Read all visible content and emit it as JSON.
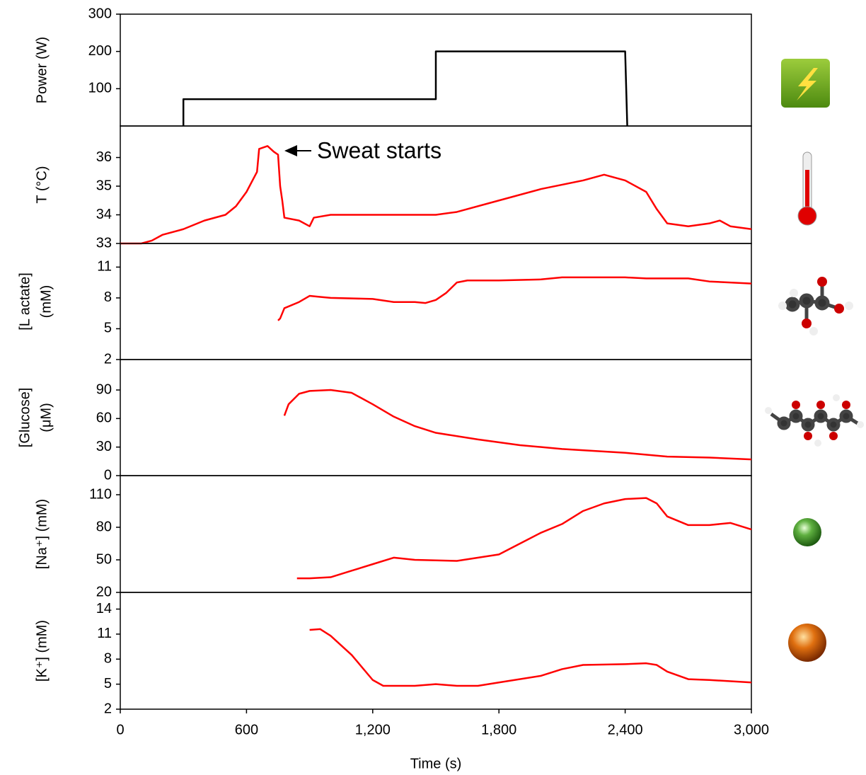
{
  "chart_data": [
    {
      "type": "line",
      "ylabel": [
        "Power (W)"
      ],
      "xlim": [
        0,
        3000
      ],
      "ylim": [
        0,
        300
      ],
      "yticks": [
        100,
        200,
        300
      ],
      "series": [
        {
          "color": "#000000",
          "x": [
            300,
            300,
            1500,
            1500,
            2400,
            2410
          ],
          "values": [
            0,
            72,
            72,
            200,
            200,
            0
          ]
        }
      ]
    },
    {
      "type": "line",
      "ylabel": [
        "T (°C)"
      ],
      "annotation": "Sweat starts",
      "xlim": [
        0,
        3000
      ],
      "ylim": [
        33,
        37.1
      ],
      "yticks": [
        33,
        34,
        35,
        36
      ],
      "series": [
        {
          "color": "#ff0000",
          "x": [
            0,
            100,
            150,
            200,
            300,
            400,
            500,
            550,
            600,
            650,
            660,
            700,
            730,
            750,
            760,
            770,
            780,
            850,
            900,
            920,
            1000,
            1100,
            1500,
            1600,
            1800,
            2000,
            2200,
            2300,
            2400,
            2500,
            2550,
            2600,
            2700,
            2800,
            2850,
            2900,
            3000
          ],
          "values": [
            33,
            33,
            33.1,
            33.3,
            33.5,
            33.8,
            34,
            34.3,
            34.8,
            35.5,
            36.3,
            36.4,
            36.2,
            36.1,
            35.0,
            34.5,
            33.9,
            33.8,
            33.6,
            33.9,
            34.0,
            34,
            34,
            34.1,
            34.5,
            34.9,
            35.2,
            35.4,
            35.2,
            34.8,
            34.2,
            33.7,
            33.6,
            33.7,
            33.8,
            33.6,
            33.5
          ]
        }
      ]
    },
    {
      "type": "line",
      "ylabel": [
        "[L actate]",
        "(mM)"
      ],
      "xlim": [
        0,
        3000
      ],
      "ylim": [
        2,
        13.3
      ],
      "yticks": [
        2,
        5,
        8,
        11
      ],
      "series": [
        {
          "color": "#ff0000",
          "x": [
            750,
            760,
            780,
            850,
            900,
            950,
            1000,
            1200,
            1300,
            1400,
            1450,
            1500,
            1550,
            1600,
            1650,
            1800,
            2000,
            2100,
            2400,
            2500,
            2700,
            2800,
            3000
          ],
          "values": [
            5.8,
            6.0,
            7.0,
            7.6,
            8.2,
            8.1,
            8.0,
            7.9,
            7.6,
            7.6,
            7.5,
            7.8,
            8.5,
            9.5,
            9.7,
            9.7,
            9.8,
            10.0,
            10.0,
            9.9,
            9.9,
            9.6,
            9.4
          ]
        }
      ]
    },
    {
      "type": "line",
      "ylabel": [
        "[Glucose]",
        "(μM)"
      ],
      "xlim": [
        0,
        3000
      ],
      "ylim": [
        0,
        122
      ],
      "yticks": [
        0,
        30,
        60,
        90
      ],
      "series": [
        {
          "color": "#ff0000",
          "x": [
            780,
            800,
            850,
            900,
            1000,
            1100,
            1200,
            1300,
            1400,
            1500,
            1700,
            1900,
            2100,
            2400,
            2600,
            2800,
            3000
          ],
          "values": [
            63,
            75,
            86,
            89,
            90,
            87,
            75,
            62,
            52,
            45,
            38,
            32,
            28,
            24,
            20,
            19,
            17
          ]
        }
      ]
    },
    {
      "type": "line",
      "ylabel": [
        "[Na⁺] (mM)"
      ],
      "xlim": [
        0,
        3000
      ],
      "ylim": [
        20,
        127.6
      ],
      "yticks": [
        20,
        50,
        80,
        110
      ],
      "series": [
        {
          "color": "#ff0000",
          "x": [
            840,
            900,
            1000,
            1100,
            1200,
            1300,
            1400,
            1600,
            1800,
            1900,
            2000,
            2100,
            2200,
            2300,
            2400,
            2500,
            2550,
            2600,
            2700,
            2800,
            2900,
            3000
          ],
          "values": [
            33,
            33,
            34,
            40,
            46,
            52,
            50,
            49,
            55,
            65,
            75,
            83,
            95,
            102,
            106,
            107,
            102,
            90,
            82,
            82,
            84,
            78
          ]
        }
      ]
    },
    {
      "type": "line",
      "ylabel": [
        "[K⁺] (mM)"
      ],
      "xlabel": "Time (s)",
      "xlim": [
        0,
        3000
      ],
      "ylim": [
        2,
        16
      ],
      "yticks": [
        2,
        5,
        8,
        11,
        14
      ],
      "xticks": [
        0,
        600,
        {
          "value": 1200,
          "label": "1,200"
        },
        {
          "value": 1800,
          "label": "1,800"
        },
        {
          "value": 2400,
          "label": "2,400"
        },
        {
          "value": 3000,
          "label": "3,000"
        }
      ],
      "series": [
        {
          "color": "#ff0000",
          "x": [
            900,
            950,
            1000,
            1100,
            1200,
            1250,
            1400,
            1500,
            1600,
            1700,
            1800,
            2000,
            2100,
            2200,
            2400,
            2500,
            2550,
            2600,
            2700,
            2800,
            3000
          ],
          "values": [
            11.5,
            11.6,
            10.8,
            8.5,
            5.5,
            4.8,
            4.8,
            5.0,
            4.8,
            4.8,
            5.2,
            6.0,
            6.8,
            7.3,
            7.4,
            7.5,
            7.3,
            6.5,
            5.6,
            5.5,
            5.2
          ]
        }
      ]
    }
  ]
}
